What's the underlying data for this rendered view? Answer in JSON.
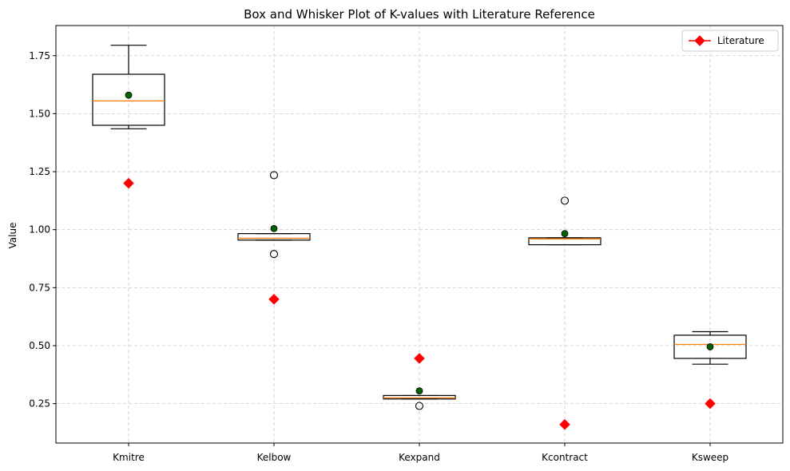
{
  "chart_data": {
    "type": "box",
    "title": "Box and Whisker Plot of K-values with Literature Reference",
    "xlabel": "",
    "ylabel": "Value",
    "ylim": [
      0.08,
      1.88
    ],
    "yticks": [
      0.25,
      0.5,
      0.75,
      1.0,
      1.25,
      1.5,
      1.75
    ],
    "ytick_labels": [
      "0.25",
      "0.50",
      "0.75",
      "1.00",
      "1.25",
      "1.50",
      "1.75"
    ],
    "grid": true,
    "legend": {
      "placement": "top-right",
      "entries": [
        "Literature"
      ]
    },
    "categories": [
      "Kmitre",
      "Kelbow",
      "Kexpand",
      "Kcontract",
      "Ksweep"
    ],
    "boxes": [
      {
        "q1": 1.45,
        "median": 1.555,
        "q3": 1.67,
        "whisker_low": 1.435,
        "whisker_high": 1.795,
        "mean": 1.58,
        "outliers": []
      },
      {
        "q1": 0.955,
        "median": 0.963,
        "q3": 0.983,
        "whisker_low": 0.955,
        "whisker_high": 0.983,
        "mean": 1.005,
        "outliers": [
          1.235,
          0.895
        ]
      },
      {
        "q1": 0.27,
        "median": 0.275,
        "q3": 0.285,
        "whisker_low": 0.27,
        "whisker_high": 0.285,
        "mean": 0.305,
        "outliers": [
          0.24
        ]
      },
      {
        "q1": 0.935,
        "median": 0.96,
        "q3": 0.965,
        "whisker_low": 0.935,
        "whisker_high": 0.965,
        "mean": 0.983,
        "outliers": [
          1.125
        ]
      },
      {
        "q1": 0.445,
        "median": 0.505,
        "q3": 0.545,
        "whisker_low": 0.42,
        "whisker_high": 0.56,
        "mean": 0.495,
        "outliers": []
      }
    ],
    "series": [
      {
        "name": "Literature",
        "marker": "diamond",
        "color": "#ff0000",
        "values": [
          1.2,
          0.7,
          0.445,
          0.16,
          0.25
        ]
      }
    ],
    "colors": {
      "median": "#ff7f0e",
      "mean_fill": "#006400",
      "box": "#000000",
      "grid": "#cccccc"
    }
  }
}
